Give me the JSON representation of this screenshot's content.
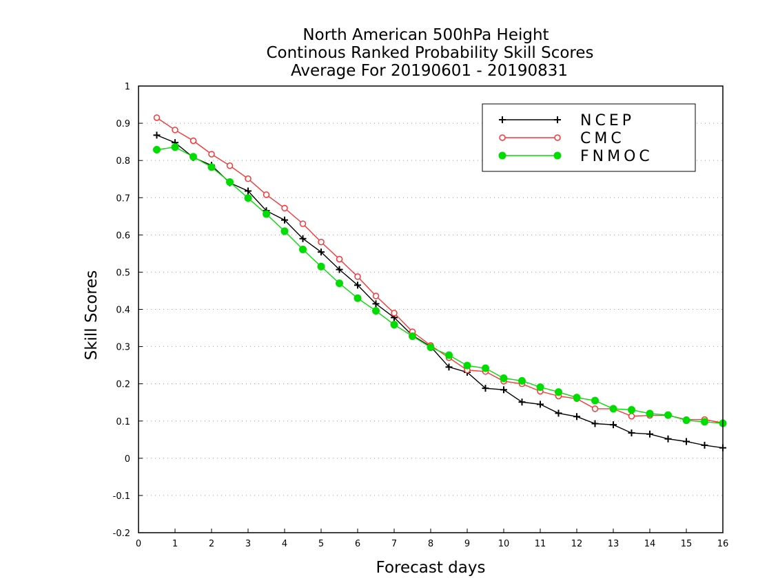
{
  "chart_data": {
    "type": "line",
    "title_lines": [
      "North American 500hPa Height",
      "Continous Ranked Probability Skill Scores",
      "Average For 20190601 - 20190831"
    ],
    "xlabel": "Forecast days",
    "ylabel": "Skill Scores",
    "xlim": [
      0,
      16
    ],
    "ylim": [
      -0.2,
      1
    ],
    "x_ticks": [
      0,
      1,
      2,
      3,
      4,
      5,
      6,
      7,
      8,
      9,
      10,
      11,
      12,
      13,
      14,
      15,
      16
    ],
    "y_ticks": [
      -0.2,
      -0.1,
      0,
      0.1,
      0.2,
      0.3,
      0.4,
      0.5,
      0.6,
      0.7,
      0.8,
      0.9,
      1
    ],
    "y_tick_labels": [
      "-0.2",
      "-0.1",
      "0",
      "0.1",
      "0.2",
      "0.3",
      "0.4",
      "0.5",
      "0.6",
      "0.7",
      "0.8",
      "0.9",
      "1"
    ],
    "grid": "horizontal dotted",
    "legend_position": "top-right",
    "x": [
      0.5,
      1,
      1.5,
      2,
      2.5,
      3,
      3.5,
      4,
      4.5,
      5,
      5.5,
      6,
      6.5,
      7,
      7.5,
      8,
      8.5,
      9,
      9.5,
      10,
      10.5,
      11,
      11.5,
      12,
      12.5,
      13,
      13.5,
      14,
      14.5,
      15,
      15.5,
      16
    ],
    "series": [
      {
        "name": "NCEP",
        "color": "#000000",
        "marker": "plus",
        "values": [
          0.868,
          0.848,
          0.808,
          0.787,
          0.74,
          0.718,
          0.665,
          0.64,
          0.59,
          0.554,
          0.507,
          0.465,
          0.415,
          0.378,
          0.33,
          0.3,
          0.245,
          0.231,
          0.188,
          0.184,
          0.151,
          0.145,
          0.121,
          0.112,
          0.093,
          0.09,
          0.068,
          0.065,
          0.052,
          0.045,
          0.035,
          0.028
        ]
      },
      {
        "name": "CMC",
        "color": "#ff3333",
        "marker": "open-circle",
        "values": [
          0.915,
          0.882,
          0.853,
          0.817,
          0.786,
          0.751,
          0.708,
          0.672,
          0.63,
          0.581,
          0.535,
          0.488,
          0.436,
          0.39,
          0.34,
          0.303,
          0.27,
          0.237,
          0.233,
          0.207,
          0.2,
          0.18,
          0.167,
          0.16,
          0.133,
          0.133,
          0.113,
          0.115,
          0.115,
          0.104,
          0.104,
          0.095
        ]
      },
      {
        "name": "FNMOC",
        "color": "#00dd00",
        "marker": "filled-circle",
        "values": [
          0.829,
          0.836,
          0.81,
          0.782,
          0.742,
          0.699,
          0.656,
          0.61,
          0.561,
          0.515,
          0.47,
          0.43,
          0.396,
          0.359,
          0.328,
          0.298,
          0.277,
          0.249,
          0.242,
          0.215,
          0.208,
          0.191,
          0.178,
          0.163,
          0.155,
          0.133,
          0.13,
          0.12,
          0.116,
          0.102,
          0.098,
          0.094
        ]
      }
    ]
  }
}
